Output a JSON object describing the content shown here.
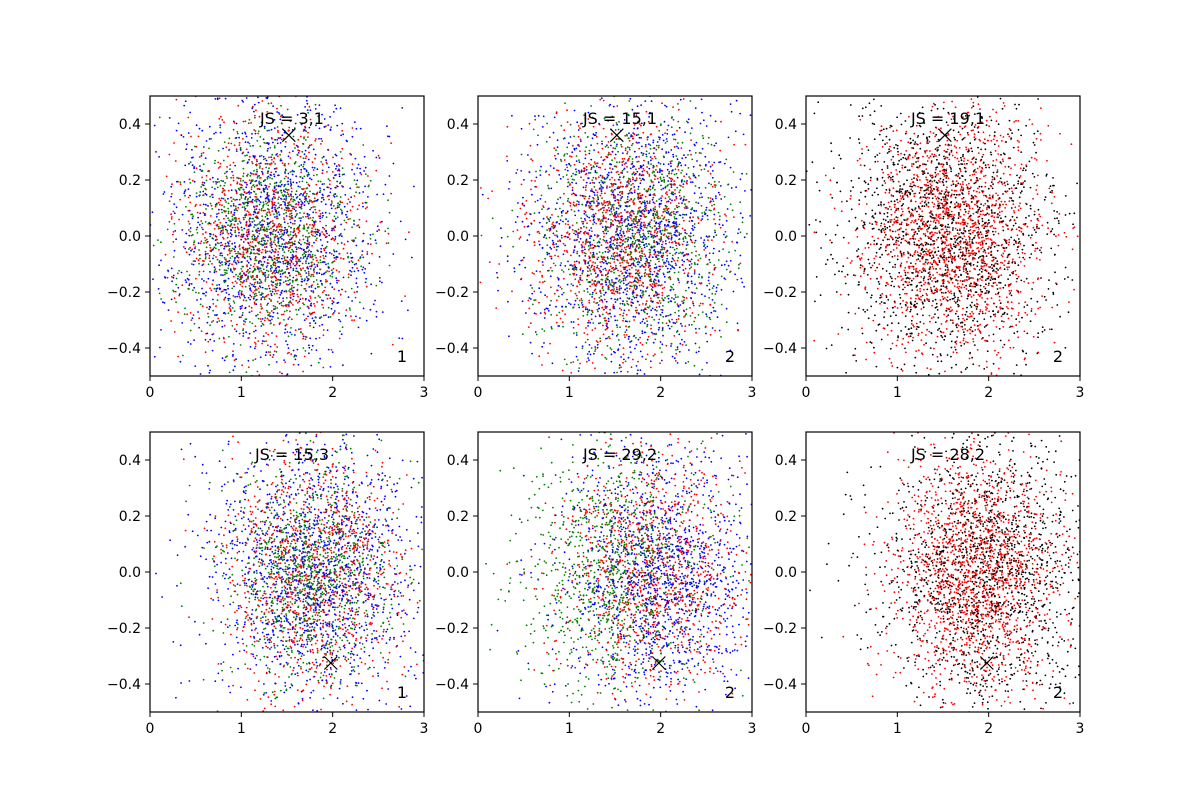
{
  "figure": {
    "background": "#ffffff"
  },
  "chart_data": [
    {
      "type": "scatter",
      "panel": "top-left",
      "annotation": "JS = 3,1",
      "corner_label": "1",
      "xlim": [
        0,
        3
      ],
      "ylim": [
        -0.5,
        0.5
      ],
      "x_ticks": [
        0,
        1,
        2,
        3
      ],
      "y_ticks": [
        -0.4,
        -0.2,
        0.0,
        0.2,
        0.4
      ],
      "x_tick_labels": [
        "0",
        "1",
        "2",
        "3"
      ],
      "y_tick_labels": [
        "−0.4",
        "−0.2",
        "0.0",
        "0.2",
        "0.4"
      ],
      "marker": {
        "x": 1.52,
        "y": 0.36,
        "symbol": "x",
        "color": "#000000"
      },
      "series": [
        {
          "color": "#0000ff",
          "count": 1300,
          "center": [
            1.35,
            0.0
          ],
          "spread": [
            0.6,
            0.25
          ]
        },
        {
          "color": "#ff0000",
          "count": 1100,
          "center": [
            1.3,
            0.0
          ],
          "spread": [
            0.5,
            0.22
          ]
        },
        {
          "color": "#008000",
          "count": 1000,
          "center": [
            1.3,
            0.0
          ],
          "spread": [
            0.45,
            0.2
          ]
        }
      ]
    },
    {
      "type": "scatter",
      "panel": "top-middle",
      "annotation": "JS = 15,1",
      "corner_label": "2",
      "xlim": [
        0,
        3
      ],
      "ylim": [
        -0.5,
        0.5
      ],
      "x_ticks": [
        0,
        1,
        2,
        3
      ],
      "y_ticks": [
        -0.4,
        -0.2,
        0.0,
        0.2,
        0.4
      ],
      "x_tick_labels": [
        "0",
        "1",
        "2",
        "3"
      ],
      "y_tick_labels": [
        "−0.4",
        "−0.2",
        "0.0",
        "0.2",
        "0.4"
      ],
      "marker": {
        "x": 1.52,
        "y": 0.36,
        "symbol": "x",
        "color": "#000000"
      },
      "series": [
        {
          "color": "#0000ff",
          "count": 1400,
          "center": [
            1.7,
            0.0
          ],
          "spread": [
            0.6,
            0.25
          ]
        },
        {
          "color": "#ff0000",
          "count": 1200,
          "center": [
            1.55,
            0.0
          ],
          "spread": [
            0.5,
            0.22
          ]
        },
        {
          "color": "#008000",
          "count": 1000,
          "center": [
            1.75,
            0.0
          ],
          "spread": [
            0.5,
            0.22
          ]
        }
      ]
    },
    {
      "type": "scatter",
      "panel": "top-right",
      "annotation": "JS = 19,1",
      "corner_label": "2",
      "xlim": [
        0,
        3
      ],
      "ylim": [
        -0.5,
        0.5
      ],
      "x_ticks": [
        0,
        1,
        2,
        3
      ],
      "y_ticks": [
        -0.4,
        -0.2,
        0.0,
        0.2,
        0.4
      ],
      "x_tick_labels": [
        "0",
        "1",
        "2",
        "3"
      ],
      "y_tick_labels": [
        "−0.4",
        "−0.2",
        "0.0",
        "0.2",
        "0.4"
      ],
      "marker": {
        "x": 1.52,
        "y": 0.36,
        "symbol": "x",
        "color": "#000000"
      },
      "series": [
        {
          "color": "#000000",
          "count": 1500,
          "center": [
            1.55,
            0.0
          ],
          "spread": [
            0.6,
            0.25
          ]
        },
        {
          "color": "#ff0000",
          "count": 1700,
          "center": [
            1.6,
            0.0
          ],
          "spread": [
            0.5,
            0.22
          ]
        }
      ]
    },
    {
      "type": "scatter",
      "panel": "bottom-left",
      "annotation": "JS = 15,3",
      "corner_label": "1",
      "xlim": [
        0,
        3
      ],
      "ylim": [
        -0.5,
        0.5
      ],
      "x_ticks": [
        0,
        1,
        2,
        3
      ],
      "y_ticks": [
        -0.4,
        -0.2,
        0.0,
        0.2,
        0.4
      ],
      "x_tick_labels": [
        "0",
        "1",
        "2",
        "3"
      ],
      "y_tick_labels": [
        "−0.4",
        "−0.2",
        "0.0",
        "0.2",
        "0.4"
      ],
      "marker": {
        "x": 1.98,
        "y": -0.325,
        "symbol": "x",
        "color": "#000000"
      },
      "series": [
        {
          "color": "#0000ff",
          "count": 1400,
          "center": [
            1.8,
            0.0
          ],
          "spread": [
            0.6,
            0.25
          ]
        },
        {
          "color": "#ff0000",
          "count": 1100,
          "center": [
            1.8,
            0.0
          ],
          "spread": [
            0.5,
            0.22
          ]
        },
        {
          "color": "#008000",
          "count": 1000,
          "center": [
            1.75,
            0.0
          ],
          "spread": [
            0.45,
            0.2
          ]
        }
      ]
    },
    {
      "type": "scatter",
      "panel": "bottom-middle",
      "annotation": "JS = 29,2",
      "corner_label": "2",
      "xlim": [
        0,
        3
      ],
      "ylim": [
        -0.5,
        0.5
      ],
      "x_ticks": [
        0,
        1,
        2,
        3
      ],
      "y_ticks": [
        -0.4,
        -0.2,
        0.0,
        0.2,
        0.4
      ],
      "x_tick_labels": [
        "0",
        "1",
        "2",
        "3"
      ],
      "y_tick_labels": [
        "−0.4",
        "−0.2",
        "0.0",
        "0.2",
        "0.4"
      ],
      "marker": {
        "x": 1.98,
        "y": -0.325,
        "symbol": "x",
        "color": "#000000"
      },
      "series": [
        {
          "color": "#0000ff",
          "count": 1300,
          "center": [
            2.0,
            0.0
          ],
          "spread": [
            0.55,
            0.25
          ]
        },
        {
          "color": "#ff0000",
          "count": 1100,
          "center": [
            1.9,
            0.0
          ],
          "spread": [
            0.5,
            0.22
          ]
        },
        {
          "color": "#008000",
          "count": 1000,
          "center": [
            1.5,
            0.0
          ],
          "spread": [
            0.5,
            0.22
          ]
        }
      ]
    },
    {
      "type": "scatter",
      "panel": "bottom-right",
      "annotation": "JS = 28,2",
      "corner_label": "2",
      "xlim": [
        0,
        3
      ],
      "ylim": [
        -0.5,
        0.5
      ],
      "x_ticks": [
        0,
        1,
        2,
        3
      ],
      "y_ticks": [
        -0.4,
        -0.2,
        0.0,
        0.2,
        0.4
      ],
      "x_tick_labels": [
        "0",
        "1",
        "2",
        "3"
      ],
      "y_tick_labels": [
        "−0.4",
        "−0.2",
        "0.0",
        "0.2",
        "0.4"
      ],
      "marker": {
        "x": 1.98,
        "y": -0.325,
        "symbol": "x",
        "color": "#000000"
      },
      "series": [
        {
          "color": "#000000",
          "count": 1500,
          "center": [
            2.0,
            0.0
          ],
          "spread": [
            0.6,
            0.25
          ]
        },
        {
          "color": "#ff0000",
          "count": 1700,
          "center": [
            1.85,
            0.0
          ],
          "spread": [
            0.45,
            0.22
          ]
        }
      ]
    }
  ]
}
